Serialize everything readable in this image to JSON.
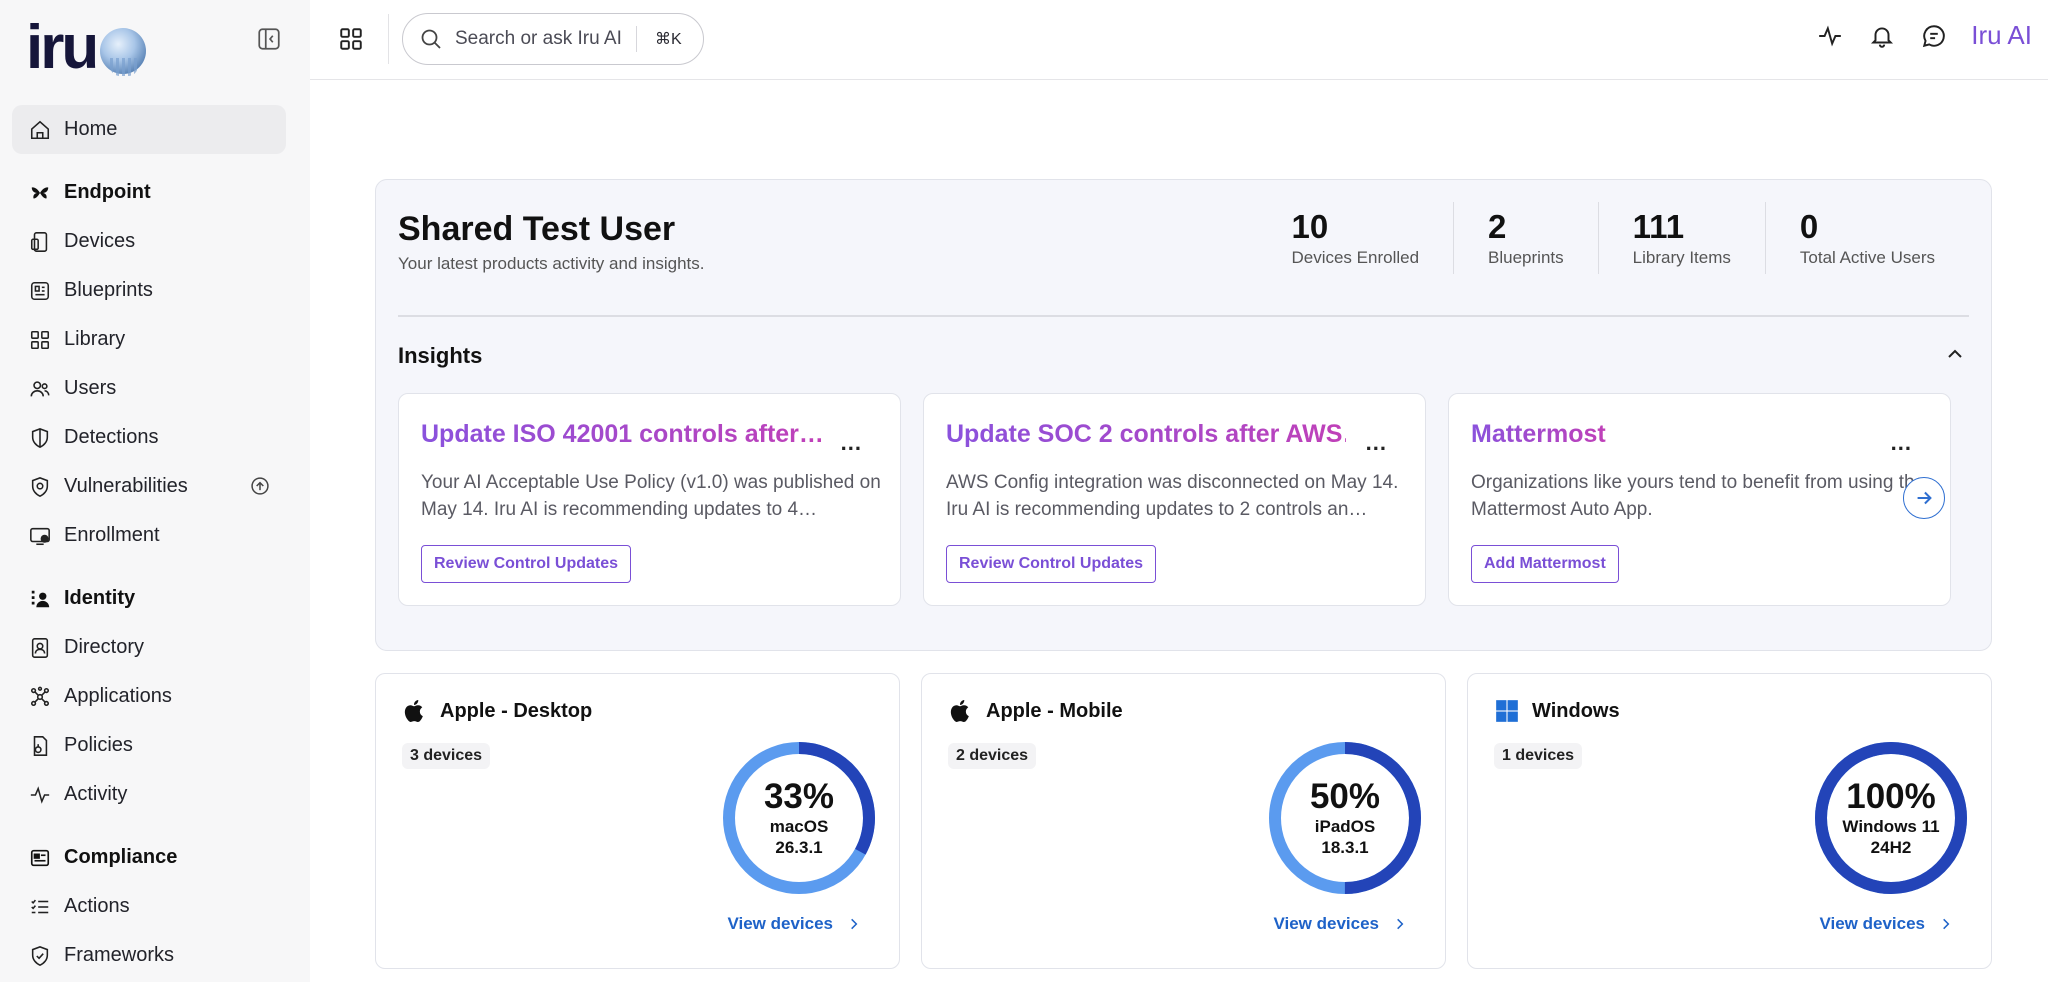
{
  "app": {
    "logo_text": "iru",
    "assistant_label": "Iru AI"
  },
  "search": {
    "placeholder": "Search or ask Iru AI",
    "shortcut": "⌘K"
  },
  "sidebar": {
    "home": "Home",
    "sections": [
      {
        "label": "Endpoint",
        "items": [
          "Devices",
          "Blueprints",
          "Library",
          "Users",
          "Detections",
          "Vulnerabilities",
          "Enrollment"
        ]
      },
      {
        "label": "Identity",
        "items": [
          "Directory",
          "Applications",
          "Policies",
          "Activity"
        ]
      },
      {
        "label": "Compliance",
        "items": [
          "Actions",
          "Frameworks"
        ]
      }
    ]
  },
  "summary": {
    "name": "Shared Test User",
    "subtitle": "Your latest products activity and insights.",
    "stats": [
      {
        "value": "10",
        "label": "Devices Enrolled"
      },
      {
        "value": "2",
        "label": "Blueprints"
      },
      {
        "value": "111",
        "label": "Library Items"
      },
      {
        "value": "0",
        "label": "Total Active Users"
      }
    ]
  },
  "insights": {
    "title": "Insights",
    "cards": [
      {
        "title": "Update ISO 42001 controls after…",
        "more": "...",
        "body": "Your AI Acceptable Use Policy (v1.0) was published on May 14. Iru AI is recommending updates to 4…",
        "button": "Review Control Updates"
      },
      {
        "title": "Update SOC 2 controls after AWS…",
        "more": "...",
        "body": "AWS Config integration was disconnected on May 14. Iru AI is recommending updates to 2 controls an…",
        "button": "Review Control Updates"
      },
      {
        "title": "Mattermost",
        "more": "...",
        "body": "Organizations like yours tend to benefit from using the Mattermost Auto App.",
        "button": "Add Mattermost"
      }
    ]
  },
  "platforms": [
    {
      "title": "Apple - Desktop",
      "count": "3 devices",
      "percent_text": "33%",
      "percent": 33,
      "os": "macOS 26.3.1",
      "link": "View devices"
    },
    {
      "title": "Apple - Mobile",
      "count": "2 devices",
      "percent_text": "50%",
      "percent": 50,
      "os": "iPadOS 18.3.1",
      "link": "View devices"
    },
    {
      "title": "Windows",
      "count": "1 devices",
      "percent_text": "100%",
      "percent": 100,
      "os": "Windows 11 24H2",
      "link": "View devices"
    }
  ],
  "colors": {
    "accent": "#7a4fd6",
    "link": "#1e62c8",
    "donut_primary": "#2344b8",
    "donut_secondary": "#5b9bef"
  }
}
